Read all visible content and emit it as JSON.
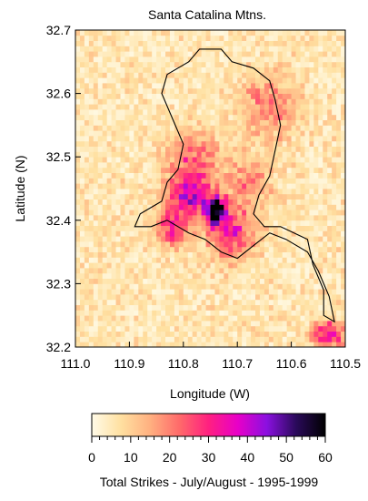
{
  "chart_data": {
    "type": "heatmap",
    "title": "Santa Catalina Mtns.",
    "xlabel": "Longitude (W)",
    "ylabel": "Latitude (N)",
    "x_range": [
      111.0,
      110.5
    ],
    "y_range": [
      32.2,
      32.7
    ],
    "x_ticks": [
      {
        "value": 111.0,
        "label": "111.0"
      },
      {
        "value": 110.9,
        "label": "110.9"
      },
      {
        "value": 110.8,
        "label": "110.8"
      },
      {
        "value": 110.7,
        "label": "110.7"
      },
      {
        "value": 110.6,
        "label": "110.6"
      },
      {
        "value": 110.5,
        "label": "110.5"
      }
    ],
    "y_ticks": [
      {
        "value": 32.2,
        "label": "32.2"
      },
      {
        "value": 32.3,
        "label": "32.3"
      },
      {
        "value": 32.4,
        "label": "32.4"
      },
      {
        "value": 32.5,
        "label": "32.5"
      },
      {
        "value": 32.6,
        "label": "32.6"
      },
      {
        "value": 32.7,
        "label": "32.7"
      }
    ],
    "colorbar": {
      "label": "Total Strikes - July/August - 1995-1999",
      "range": [
        0,
        60
      ],
      "ticks": [
        {
          "value": 0,
          "label": "0"
        },
        {
          "value": 10,
          "label": "10"
        },
        {
          "value": 20,
          "label": "20"
        },
        {
          "value": 30,
          "label": "30"
        },
        {
          "value": 40,
          "label": "40"
        },
        {
          "value": 50,
          "label": "50"
        },
        {
          "value": 60,
          "label": "60"
        }
      ],
      "colors": [
        "#fffbe8",
        "#ffe0a0",
        "#ffb080",
        "#ff6a6a",
        "#ff2080",
        "#e800c8",
        "#8a10e0",
        "#2a0a5a",
        "#000000"
      ]
    },
    "grid_size": [
      60,
      60
    ],
    "hotspots": [
      {
        "lon": 110.74,
        "lat": 32.415,
        "peak": 60,
        "spread_lon": 0.02,
        "spread_lat": 0.02
      },
      {
        "lon": 110.79,
        "lat": 32.44,
        "peak": 30,
        "spread_lon": 0.04,
        "spread_lat": 0.035
      },
      {
        "lon": 110.71,
        "lat": 32.38,
        "peak": 24,
        "spread_lon": 0.04,
        "spread_lat": 0.04
      },
      {
        "lon": 110.82,
        "lat": 32.39,
        "peak": 22,
        "spread_lon": 0.03,
        "spread_lat": 0.03
      },
      {
        "lon": 110.53,
        "lat": 32.22,
        "peak": 28,
        "spread_lon": 0.03,
        "spread_lat": 0.02
      },
      {
        "lon": 110.64,
        "lat": 32.58,
        "peak": 14,
        "spread_lon": 0.05,
        "spread_lat": 0.05
      },
      {
        "lon": 110.78,
        "lat": 32.5,
        "peak": 16,
        "spread_lon": 0.05,
        "spread_lat": 0.04
      },
      {
        "lon": 110.68,
        "lat": 32.46,
        "peak": 14,
        "spread_lon": 0.04,
        "spread_lat": 0.04
      }
    ],
    "background_level": 5
  }
}
